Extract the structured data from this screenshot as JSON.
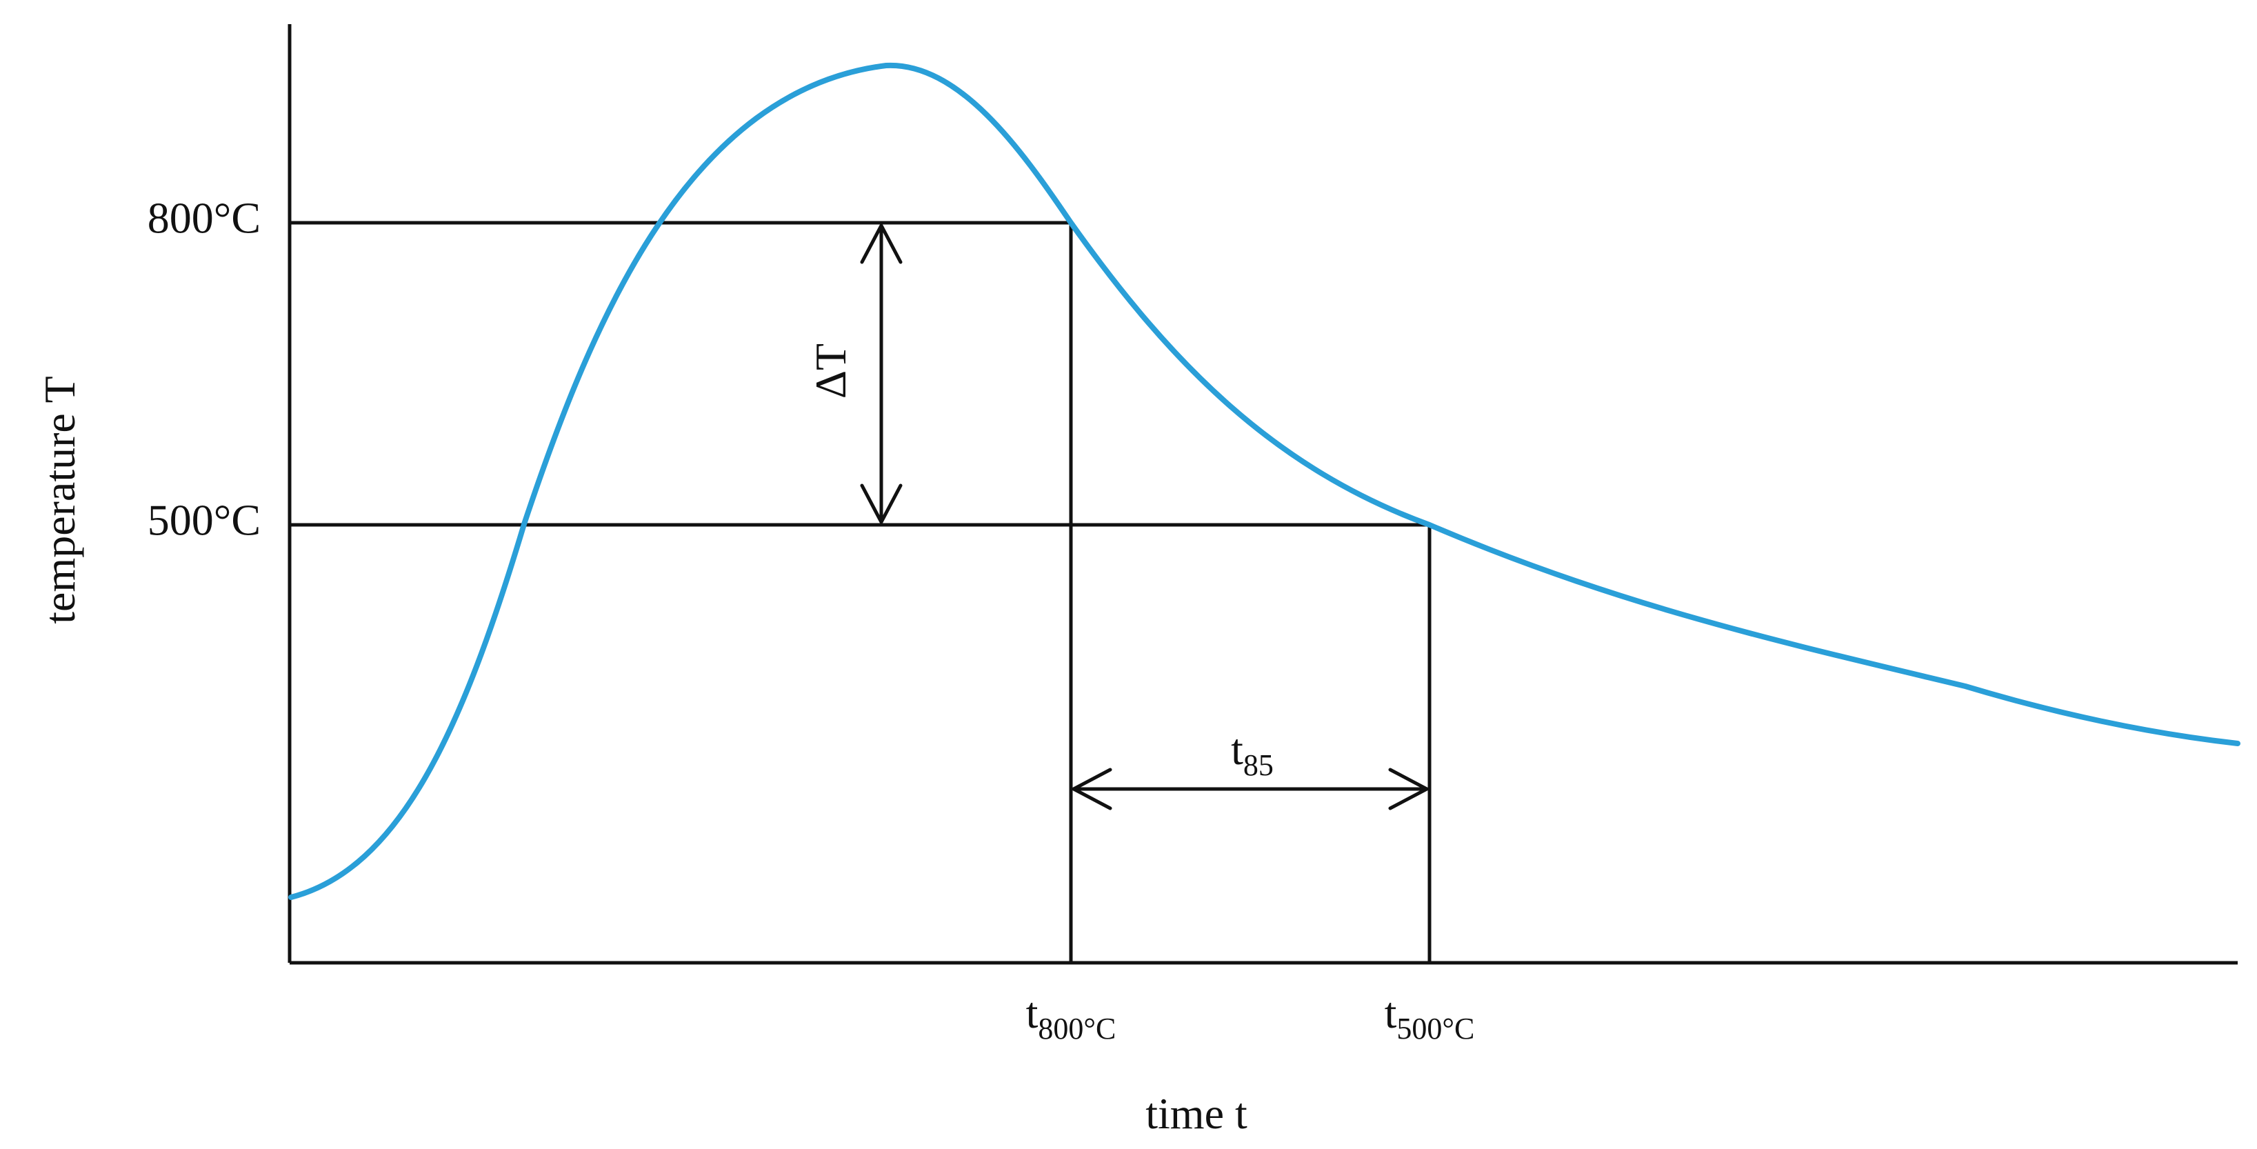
{
  "chart_data": {
    "type": "line",
    "ylabel": "temperature T",
    "xlabel": "time t",
    "y_levels": [
      {
        "id": "t800",
        "label": "800°C",
        "value": 800
      },
      {
        "id": "t500",
        "label": "500°C",
        "value": 500
      }
    ],
    "x_markers": [
      {
        "id": "t800",
        "main": "t",
        "sub": "800°C"
      },
      {
        "id": "t500",
        "main": "t",
        "sub": "500°C"
      }
    ],
    "annotations": {
      "delta": "ΔT",
      "duration_main": "t",
      "duration_sub": "85"
    },
    "grid": false,
    "legend": "none",
    "colors": {
      "curve": "#2a9fd8",
      "axes": "#111111"
    }
  }
}
